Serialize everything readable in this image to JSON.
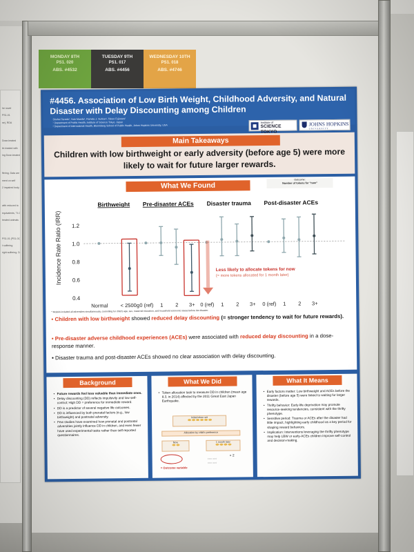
{
  "session_tags": [
    {
      "day": "MONDAY 8TH",
      "ps": "PS1. 020",
      "abs": "ABS. #4532",
      "bg": "#6ea43f",
      "fg": "#e7f1c8"
    },
    {
      "day": "TUESDAY 9TH",
      "ps": "PS1. 017",
      "abs": "ABS. #4456",
      "bg": "#3b3a38",
      "fg": "#f2f2f2"
    },
    {
      "day": "WEDNESDAY 10TH",
      "ps": "PS1. 018",
      "abs": "ABS. #4746",
      "bg": "#e3a447",
      "fg": "#fff5dd"
    }
  ],
  "poster": {
    "title": "#4456. Association of Low Birth Weight, Childhood Adversity, and Natural Disaster with Delay Discounting among Children",
    "authors": "Shuhei Terada¹, Yuto Maeda¹, Pamela J. Surkan², Takeo Fujiwara¹",
    "affiliation_1": "¹ Department of Public Health, Institute of Science Tokyo, Japan",
    "affiliation_2": "² Department of International Health, Bloomberg School of Public Health, Johns Hopkins University, USA",
    "logo_1_small": "Institute of",
    "logo_1_big": "SCIENCE TOKYO",
    "logo_2_name": "JOHNS HOPKINS",
    "logo_2_sub": "UNIVERSITY",
    "takeaways_header": "Main Takeaways",
    "takeaways_text": "Children with low birthweight or early adversity (before age 5) were more likely to wait for future larger rewards.",
    "found_header": "What We Found",
    "outcome_label": "Outcome:",
    "outcome_value": "Number of tokens for \"now\"",
    "model_note": "* Models included all adversities simultaneously, controlling for child's age, sex, maternal education, and household economic status before the disaster.",
    "bullet_1a": "Children with low birthweight",
    "bullet_1b": " showed ",
    "bullet_1c": "reduced delay discounting",
    "bullet_1d": " (= stronger tendency to wait for future rewards).",
    "bullet_2a": "Pre-disaster adverse childhood experiences (ACEs)",
    "bullet_2b": " were associated with ",
    "bullet_2c": "reduced delay discounting",
    "bullet_2d": " in a dose-response manner.",
    "bullet_3": "Disaster trauma and post-disaster ACEs showed no clear association with delay discounting.",
    "background_header": "Background",
    "background_items": [
      "Future rewards feel less valuable than immediate ones.",
      "Delay discounting (DD) reflects impulsivity and low self-control; High DD = preference for immediate reward.",
      "DD is a predictor of several negative life outcomes.",
      "DD is influenced by both prenatal factors (e.g., low birthweight) and postnatal adversity.",
      "Few studies have examined how prenatal and postnatal adversities jointly influence DD in children, and even fewer have used experimental tasks rather than self-reported questionnaires."
    ],
    "did_header": "What We Did",
    "did_text": "Token allocation task to measure DD in children (mean age 8.3, in 2014) affected by the 2011 Great East Japan Earthquake.",
    "did_box_top": "Initial token set",
    "did_box_mid": "Allocation by child's preference",
    "did_box_now": "Now",
    "did_box_later": "1 month later",
    "did_multiplier": "× 2",
    "did_outcome": "= Outcome variable",
    "means_header": "What It Means",
    "means_items": [
      "Early factors matter: Low birthweight and ACEs before the disaster (before age 5) were linked to waiting for larger rewards.",
      "Thrifty behavior: Early-life deprivation may promote resource-seeking tendencies, consistent with the thrifty phenotype.",
      "Sensitive period: Trauma or ACEs after the disaster had little impact, highlighting early childhood as a key period for shaping reward behaviors.",
      "Implication: Interventions leveraging the thrifty phenotype may help LBW or early-ACEs children improve self-control and decision-making."
    ]
  },
  "neighbor_left_lines": [
    "he novel",
    "PS1-01",
    "se), RDA",
    "Dose-treated",
    "lin treated with",
    "ing Dose-treated",
    "ffering. Data are",
    "ment on self",
    "2 impaired body",
    "with reduced to",
    "equivalents, °X-01",
    "treated animals",
    "PS1-01 (PS1-01)",
    "t suffering",
    "right suffering. Data are"
  ],
  "chart_data": {
    "type": "scatter",
    "title": "",
    "ylabel": "Incidence Rate Ratio (IRR)",
    "ylim": [
      0.4,
      1.3
    ],
    "yticks": [
      0.4,
      0.6,
      0.8,
      1.0,
      1.2
    ],
    "reference_line": 1.0,
    "groups": [
      {
        "name": "Birthweight",
        "categories": [
          "Normal",
          "< 2500g"
        ]
      },
      {
        "name": "Pre-disaster ACEs",
        "categories": [
          "0 (ref)",
          "1",
          "2",
          "3+"
        ]
      },
      {
        "name": "Disaster trauma",
        "categories": [
          "0 (ref)",
          "1",
          "2",
          "3+"
        ]
      },
      {
        "name": "Post-disaster ACEs",
        "categories": [
          "0 (ref)",
          "1",
          "2",
          "3+"
        ]
      }
    ],
    "estimates": [
      {
        "group": "Birthweight",
        "category": "Normal",
        "irr": 1.0,
        "lo": 1.0,
        "hi": 1.0
      },
      {
        "group": "Birthweight",
        "category": "< 2500g",
        "irr": 0.72,
        "lo": 0.47,
        "hi": 1.0
      },
      {
        "group": "Pre-disaster ACEs",
        "category": "0 (ref)",
        "irr": 1.0,
        "lo": 1.0,
        "hi": 1.0
      },
      {
        "group": "Pre-disaster ACEs",
        "category": "1",
        "irr": 1.0,
        "lo": 0.86,
        "hi": 1.18
      },
      {
        "group": "Pre-disaster ACEs",
        "category": "2",
        "irr": 0.95,
        "lo": 0.76,
        "hi": 1.15
      },
      {
        "group": "Pre-disaster ACEs",
        "category": "3+",
        "irr": 0.67,
        "lo": 0.46,
        "hi": 0.98
      },
      {
        "group": "Disaster trauma",
        "category": "0 (ref)",
        "irr": 1.0,
        "lo": 1.0,
        "hi": 1.0
      },
      {
        "group": "Disaster trauma",
        "category": "1",
        "irr": 1.03,
        "lo": 0.85,
        "hi": 1.28
      },
      {
        "group": "Disaster trauma",
        "category": "2",
        "irr": 1.01,
        "lo": 0.85,
        "hi": 1.2
      },
      {
        "group": "Disaster trauma",
        "category": "3+",
        "irr": 1.07,
        "lo": 0.9,
        "hi": 1.28
      },
      {
        "group": "Post-disaster ACEs",
        "category": "0 (ref)",
        "irr": 1.0,
        "lo": 1.0,
        "hi": 1.0
      },
      {
        "group": "Post-disaster ACEs",
        "category": "1",
        "irr": 1.04,
        "lo": 0.88,
        "hi": 1.25
      },
      {
        "group": "Post-disaster ACEs",
        "category": "2",
        "irr": 1.02,
        "lo": 0.83,
        "hi": 1.27
      },
      {
        "group": "Post-disaster ACEs",
        "category": "3+",
        "irr": 1.06,
        "lo": 0.86,
        "hi": 1.3
      }
    ],
    "highlighted": [
      "< 2500g",
      "3+ (Pre-disaster ACEs)"
    ],
    "annotation_line1": "Less likely to allocate tokens for now",
    "annotation_line2": "(= more tokens allocated for 1 month later)",
    "colors": {
      "highlight": "#3b5566",
      "neutral": "#8ea7ad",
      "ring": "#c8312a",
      "arrow": "#e27f6d"
    }
  }
}
